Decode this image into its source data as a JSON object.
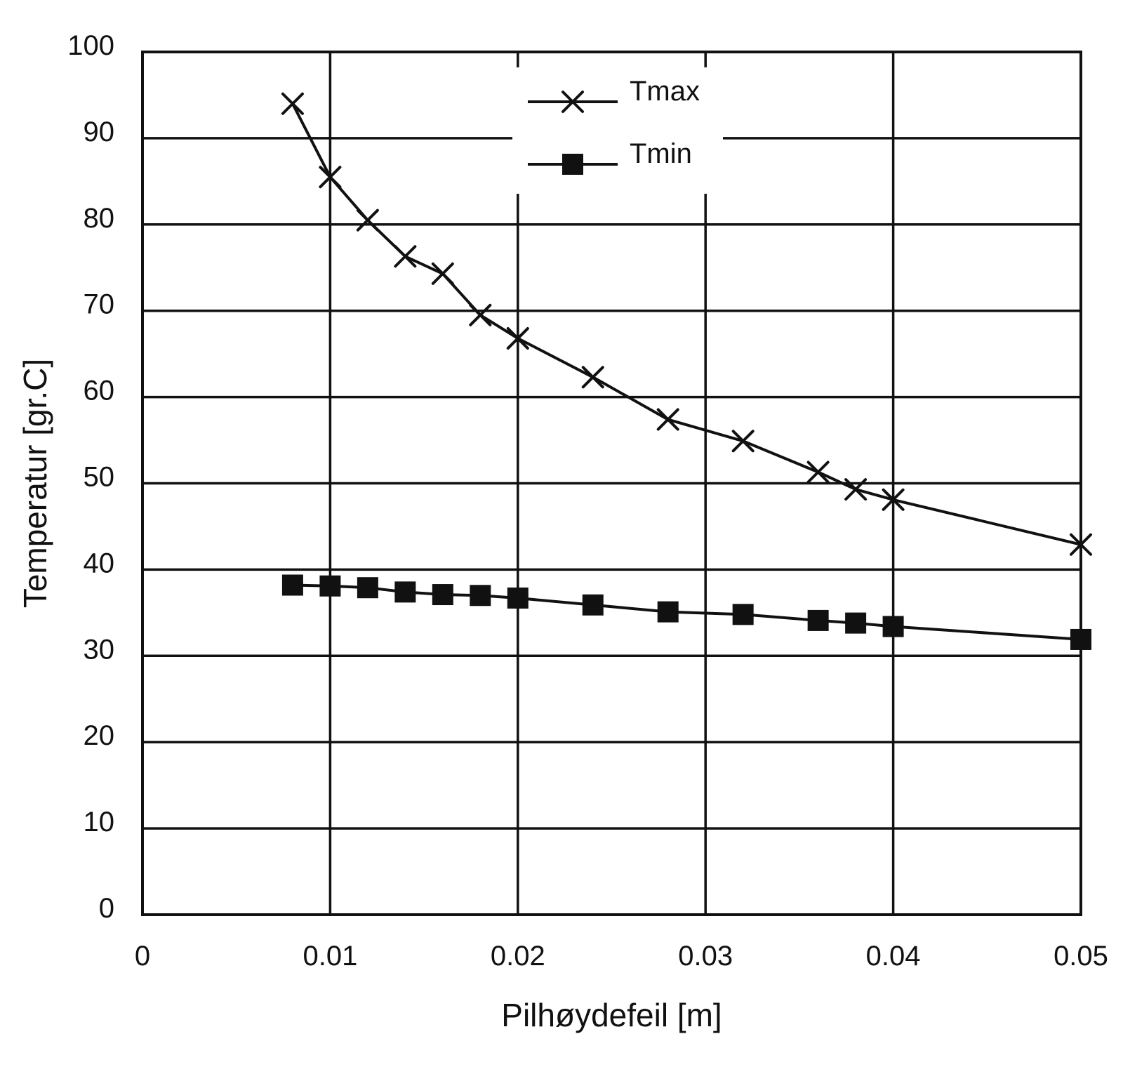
{
  "chart_data": {
    "type": "line",
    "title": "",
    "xlabel": "Pilhøydefeil [m]",
    "ylabel": "Temperatur [gr.C]",
    "xlim": [
      0,
      0.05
    ],
    "ylim": [
      0,
      100
    ],
    "x_ticks": [
      0,
      0.01,
      0.02,
      0.03,
      0.04,
      0.05
    ],
    "x_tick_labels": [
      "0",
      "0.01",
      "0.02",
      "0.03",
      "0.04",
      "0.05"
    ],
    "y_ticks": [
      0,
      10,
      20,
      30,
      40,
      50,
      60,
      70,
      80,
      90,
      100
    ],
    "y_tick_labels": [
      "0",
      "10",
      "20",
      "30",
      "40",
      "50",
      "60",
      "70",
      "80",
      "90",
      "100"
    ],
    "grid": true,
    "legend_position": "top-center",
    "series": [
      {
        "name": "Tmax",
        "marker": "x",
        "x": [
          0.008,
          0.01,
          0.012,
          0.014,
          0.016,
          0.018,
          0.02,
          0.024,
          0.028,
          0.032,
          0.036,
          0.038,
          0.04,
          0.05
        ],
        "values": [
          94,
          85.5,
          80.5,
          76.3,
          74.3,
          69.5,
          66.8,
          62.3,
          57.4,
          54.9,
          51.3,
          49.3,
          48.1,
          42.9
        ]
      },
      {
        "name": "Tmin",
        "marker": "square",
        "x": [
          0.008,
          0.01,
          0.012,
          0.014,
          0.016,
          0.018,
          0.02,
          0.024,
          0.028,
          0.032,
          0.036,
          0.038,
          0.04,
          0.05
        ],
        "values": [
          38.2,
          38.1,
          37.9,
          37.4,
          37.1,
          37.0,
          36.7,
          35.9,
          35.1,
          34.8,
          34.1,
          33.8,
          33.4,
          31.9
        ]
      }
    ]
  }
}
